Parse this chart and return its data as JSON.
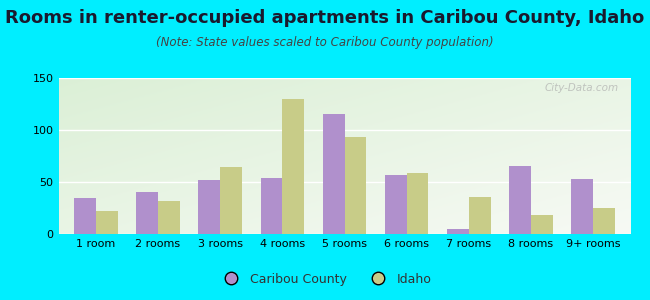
{
  "title": "Rooms in renter-occupied apartments in Caribou County, Idaho",
  "subtitle": "(Note: State values scaled to Caribou County population)",
  "categories": [
    "1 room",
    "2 rooms",
    "3 rooms",
    "4 rooms",
    "5 rooms",
    "6 rooms",
    "7 rooms",
    "8 rooms",
    "9+ rooms"
  ],
  "caribou_values": [
    35,
    40,
    52,
    54,
    115,
    57,
    5,
    65,
    53
  ],
  "idaho_values": [
    22,
    32,
    64,
    130,
    93,
    59,
    36,
    18,
    25
  ],
  "caribou_color": "#b090cc",
  "idaho_color": "#c8cc88",
  "bg_outer": "#00eeff",
  "ylim": [
    0,
    150
  ],
  "yticks": [
    0,
    50,
    100,
    150
  ],
  "bar_width": 0.35,
  "title_fontsize": 13,
  "subtitle_fontsize": 8.5,
  "tick_fontsize": 8,
  "legend_fontsize": 9,
  "watermark": "City-Data.com"
}
